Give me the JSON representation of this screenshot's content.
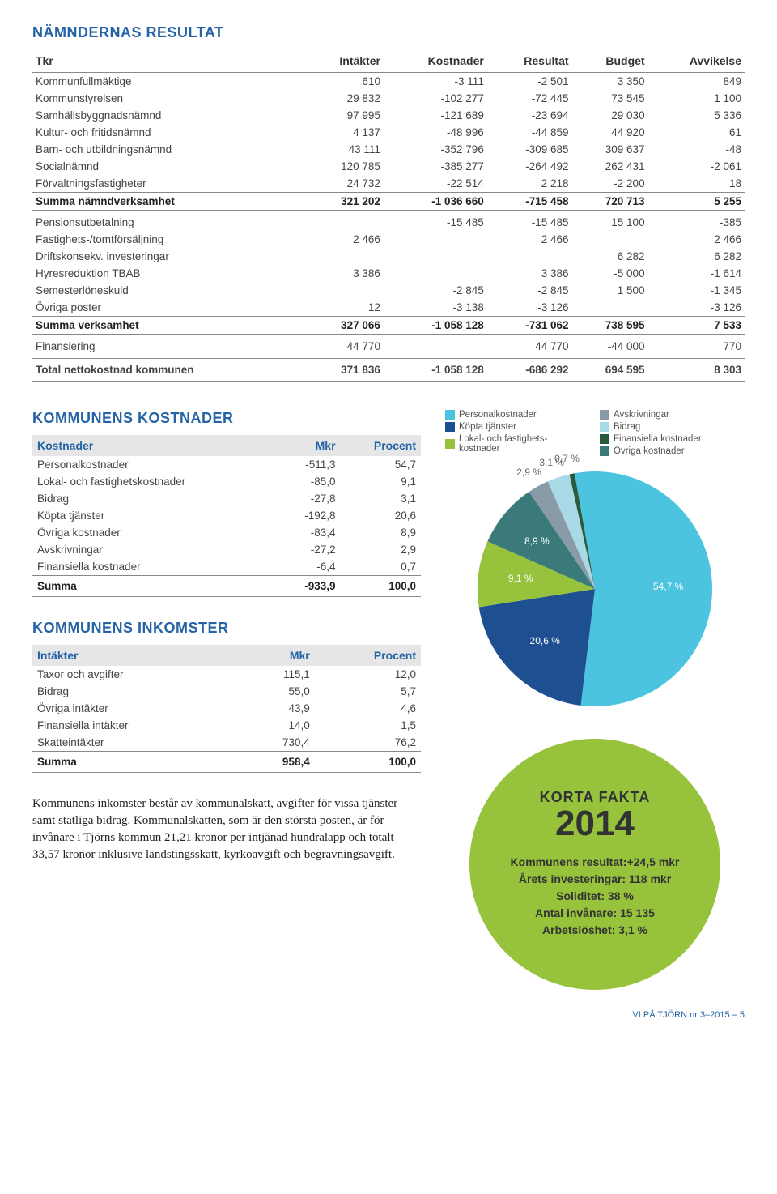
{
  "titles": {
    "resultat": "NÄMNDERNAS RESULTAT",
    "kostnader": "KOMMUNENS KOSTNADER",
    "inkomster": "KOMMUNENS INKOMSTER"
  },
  "main_table": {
    "headers": [
      "Tkr",
      "Intäkter",
      "Kostnader",
      "Resultat",
      "Budget",
      "Avvikelse"
    ],
    "block1": [
      [
        "Kommunfullmäktige",
        "610",
        "-3 111",
        "-2 501",
        "3 350",
        "849"
      ],
      [
        "Kommunstyrelsen",
        "29 832",
        "-102 277",
        "-72 445",
        "73 545",
        "1 100"
      ],
      [
        "Samhällsbyggnadsnämnd",
        "97 995",
        "-121 689",
        "-23 694",
        "29 030",
        "5 336"
      ],
      [
        "Kultur- och fritidsnämnd",
        "4 137",
        "-48 996",
        "-44 859",
        "44 920",
        "61"
      ],
      [
        "Barn- och utbildningsnämnd",
        "43 111",
        "-352 796",
        "-309 685",
        "309 637",
        "-48"
      ],
      [
        "Socialnämnd",
        "120 785",
        "-385 277",
        "-264 492",
        "262 431",
        "-2 061"
      ],
      [
        "Förvaltningsfastigheter",
        "24 732",
        "-22 514",
        "2 218",
        "-2 200",
        "18"
      ]
    ],
    "sum1": [
      "Summa nämndverksamhet",
      "321 202",
      "-1 036 660",
      "-715 458",
      "720 713",
      "5 255"
    ],
    "block2": [
      [
        "Pensionsutbetalning",
        "",
        "-15 485",
        "-15 485",
        "15 100",
        "-385"
      ],
      [
        "Fastighets-/tomtförsäljning",
        "2 466",
        "",
        "2 466",
        "",
        "2 466"
      ],
      [
        "Driftskonsekv. investeringar",
        "",
        "",
        "",
        "6 282",
        "6 282"
      ],
      [
        "Hyresreduktion TBAB",
        "3 386",
        "",
        "3 386",
        "-5 000",
        "-1 614"
      ],
      [
        "Semesterlöneskuld",
        "",
        "-2 845",
        "-2 845",
        "1 500",
        "-1 345"
      ],
      [
        "Övriga poster",
        "12",
        "-3 138",
        "-3 126",
        "",
        "-3 126"
      ]
    ],
    "sum2": [
      "Summa verksamhet",
      "327 066",
      "-1 058 128",
      "-731 062",
      "738 595",
      "7 533"
    ],
    "finans": [
      "Finansiering",
      "44 770",
      "",
      "44 770",
      "-44 000",
      "770"
    ],
    "total": [
      "Total nettokostnad kommunen",
      "371 836",
      "-1 058 128",
      "-686 292",
      "694 595",
      "8 303"
    ]
  },
  "kostnader_table": {
    "headers": [
      "Kostnader",
      "Mkr",
      "Procent"
    ],
    "rows": [
      [
        "Personalkostnader",
        "-511,3",
        "54,7"
      ],
      [
        "Lokal- och fastighetskostnader",
        "-85,0",
        "9,1"
      ],
      [
        "Bidrag",
        "-27,8",
        "3,1"
      ],
      [
        "Köpta tjänster",
        "-192,8",
        "20,6"
      ],
      [
        "Övriga kostnader",
        "-83,4",
        "8,9"
      ],
      [
        "Avskrivningar",
        "-27,2",
        "2,9"
      ],
      [
        "Finansiella kostnader",
        "-6,4",
        "0,7"
      ]
    ],
    "sum": [
      "Summa",
      "-933,9",
      "100,0"
    ]
  },
  "inkomster_table": {
    "headers": [
      "Intäkter",
      "Mkr",
      "Procent"
    ],
    "rows": [
      [
        "Taxor och avgifter",
        "115,1",
        "12,0"
      ],
      [
        "Bidrag",
        "55,0",
        "5,7"
      ],
      [
        "Övriga intäkter",
        "43,9",
        "4,6"
      ],
      [
        "Finansiella intäkter",
        "14,0",
        "1,5"
      ],
      [
        "Skatteintäkter",
        "730,4",
        "76,2"
      ]
    ],
    "sum": [
      "Summa",
      "958,4",
      "100,0"
    ]
  },
  "body_text": "Kommunens inkomster består av kommunalskatt, avgifter för vissa tjänster samt statliga bidrag. Kommunalskatten, som är den största posten, är för invånare i Tjörns kommun 21,21 kronor per intjänad hundralapp och totalt 33,57 kronor inklusive landstingsskatt, kyrkoavgift och begravningsavgift.",
  "legend_left": [
    {
      "label": "Personalkostnader",
      "color": "#4cc4e0"
    },
    {
      "label": "Köpta tjänster",
      "color": "#1d4f91"
    },
    {
      "label": "Lokal- och fastighetskostnader",
      "color": "#97c23c",
      "wrap": "Lokal- och fastighets-\nkostnader"
    }
  ],
  "legend_right": [
    {
      "label": "Avskrivningar",
      "color": "#8a9ba8"
    },
    {
      "label": "Bidrag",
      "color": "#a9d8e6"
    },
    {
      "label": "Finansiella kostnader",
      "color": "#2a5a3a"
    },
    {
      "label": "Övriga kostnader",
      "color": "#3b7a7a"
    }
  ],
  "pie": {
    "slices": [
      {
        "label": "54,7 %",
        "value": 54.7,
        "color": "#4cc4e0"
      },
      {
        "label": "20,6 %",
        "value": 20.6,
        "color": "#1d4f91"
      },
      {
        "label": "9,1 %",
        "value": 9.1,
        "color": "#97c23c"
      },
      {
        "label": "8,9 %",
        "value": 8.9,
        "color": "#3b7a7a"
      },
      {
        "label": "2,9 %",
        "value": 2.9,
        "color": "#8a9ba8",
        "label_out": true
      },
      {
        "label": "3,1 %",
        "value": 3.1,
        "color": "#a9d8e6",
        "label_out": true
      },
      {
        "label": "0,7 %",
        "value": 0.7,
        "color": "#2a5a3a",
        "label_out": true
      }
    ],
    "start_angle": -10
  },
  "fakta": {
    "title": "KORTA FAKTA",
    "year": "2014",
    "lines": [
      "Kommunens resultat:+24,5 mkr",
      "Årets investeringar: 118 mkr",
      "Soliditet: 38 %",
      "Antal invånare: 15 135",
      "Arbetslöshet: 3,1 %"
    ]
  },
  "footer": "VI PÅ TJÖRN nr 3–2015 – 5"
}
